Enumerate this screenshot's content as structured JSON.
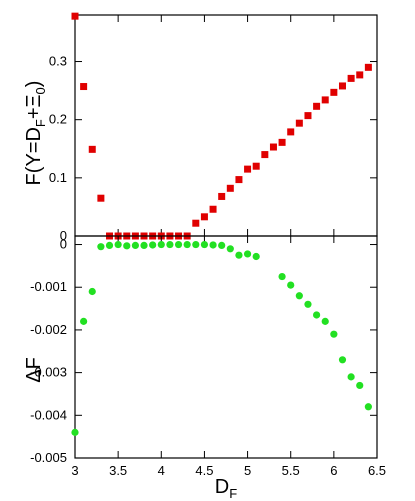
{
  "chart_data": [
    {
      "type": "scatter",
      "panel": "top",
      "ylabel_parts": {
        "main": "F(Y=D",
        "sub1": "F",
        "mid": "+Ξ",
        "sub2": "0",
        "end": ")"
      },
      "xlim": [
        3,
        6.5
      ],
      "ylim": [
        0,
        0.38
      ],
      "yticks": [
        0,
        0.1,
        0.2,
        0.3
      ],
      "ytick_labels": [
        "0",
        "0.1",
        "0.2",
        "0.3"
      ],
      "marker": "square",
      "color": "#e00000",
      "series": [
        {
          "x": [
            3.0,
            3.1,
            3.2,
            3.3,
            3.4,
            3.5,
            3.6,
            3.7,
            3.8,
            3.9,
            4.0,
            4.1,
            4.2,
            4.3,
            4.4,
            4.5,
            4.6,
            4.7,
            4.8,
            4.9,
            5.0,
            5.1,
            5.2,
            5.3,
            5.4,
            5.5,
            5.6,
            5.7,
            5.8,
            5.9,
            6.0,
            6.1,
            6.2,
            6.3,
            6.4
          ],
          "y": [
            0.378,
            0.257,
            0.149,
            0.065,
            0.0,
            0.0,
            0.0,
            0.0,
            0.0,
            0.0,
            0.0,
            0.0,
            0.0,
            0.0,
            0.022,
            0.033,
            0.046,
            0.068,
            0.082,
            0.097,
            0.115,
            0.12,
            0.14,
            0.153,
            0.161,
            0.179,
            0.194,
            0.207,
            0.223,
            0.234,
            0.247,
            0.258,
            0.271,
            0.277,
            0.29
          ]
        }
      ]
    },
    {
      "type": "scatter",
      "panel": "bottom",
      "ylabel": "ΔF",
      "xlabel_parts": {
        "main": "D",
        "sub": "F"
      },
      "xlim": [
        3,
        6.5
      ],
      "ylim": [
        -0.005,
        0.0002
      ],
      "yticks": [
        0,
        -0.001,
        -0.002,
        -0.003,
        -0.004,
        -0.005
      ],
      "ytick_labels": [
        "0",
        "-0.001",
        "-0.002",
        "-0.003",
        "-0.004",
        "-0.005"
      ],
      "xticks": [
        3,
        3.5,
        4,
        4.5,
        5,
        5.5,
        6,
        6.5
      ],
      "xtick_labels": [
        "3",
        "3.5",
        "4",
        "4.5",
        "5",
        "5.5",
        "6",
        "6.5"
      ],
      "marker": "circle",
      "color": "#22e022",
      "series": [
        {
          "x": [
            3.0,
            3.1,
            3.2,
            3.3,
            3.4,
            3.5,
            3.6,
            3.7,
            3.8,
            3.9,
            4.0,
            4.1,
            4.2,
            4.3,
            4.4,
            4.5,
            4.6,
            4.7,
            4.8,
            4.9,
            5.0,
            5.1,
            5.4,
            5.5,
            5.6,
            5.7,
            5.8,
            5.9,
            6.0,
            6.1,
            6.2,
            6.3,
            6.4
          ],
          "y": [
            -0.0044,
            -0.0018,
            -0.0011,
            -5e-05,
            -2e-05,
            0.0,
            -3e-05,
            -2e-05,
            -2e-05,
            -1e-05,
            0.0,
            0.0,
            0.0,
            0.0,
            0.0,
            0.0,
            -1e-05,
            -2e-05,
            -0.0001,
            -0.00025,
            -0.00022,
            -0.00028,
            -0.00075,
            -0.00095,
            -0.0012,
            -0.0014,
            -0.00165,
            -0.0018,
            -0.0021,
            -0.0027,
            -0.0031,
            -0.0033,
            -0.0038
          ]
        }
      ]
    }
  ]
}
